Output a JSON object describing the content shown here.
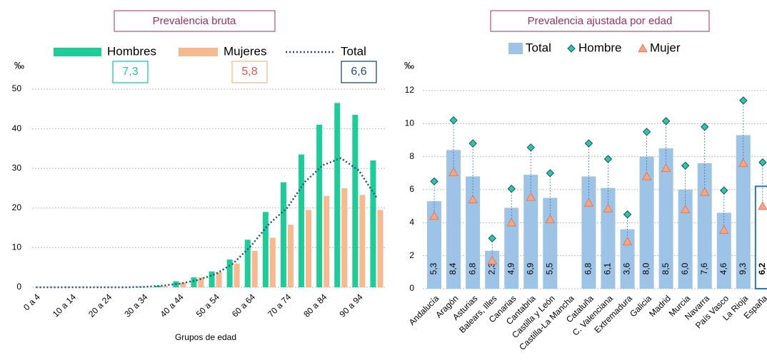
{
  "chart_data": [
    {
      "type": "bar",
      "title": "Prevalencia bruta",
      "ylabel": "‰",
      "xlabel": "Grupos de edad",
      "categories": [
        "0 a 4",
        null,
        "10 a 14",
        null,
        "20 a 24",
        null,
        "30 a 34",
        null,
        "40 a 44",
        null,
        "50 a 54",
        null,
        "60 a 64",
        null,
        "70 a 74",
        null,
        "80 a 84",
        null,
        "90 a 94",
        null
      ],
      "series": [
        {
          "name": "Hombres",
          "color": "#1ccd98",
          "summary": "7,3",
          "values": [
            0,
            0,
            0,
            0,
            0,
            0,
            0.1,
            0.4,
            1.5,
            2.5,
            4,
            7,
            12,
            19,
            26.5,
            33.5,
            41,
            46.5,
            43.5,
            32
          ]
        },
        {
          "name": "Mujeres",
          "color": "#f8b98e",
          "summary": "5,8",
          "values": [
            0,
            0,
            0,
            0,
            0,
            0,
            0.1,
            0.3,
            1.2,
            2.5,
            3.8,
            6,
            9.2,
            12.5,
            15.8,
            19.5,
            23,
            25,
            23.3,
            19.5
          ]
        },
        {
          "name": "Total",
          "type": "line",
          "color": "#1f4e79",
          "summary": "6,6",
          "values": [
            0,
            0,
            0,
            0,
            0,
            0,
            0.1,
            0.4,
            0.9,
            1.8,
            3.3,
            6,
            10.5,
            16,
            20,
            26.6,
            30.8,
            32.6,
            29.5,
            22.6
          ]
        }
      ],
      "ylim": [
        0,
        50
      ],
      "yticks": [
        0,
        10,
        20,
        30,
        40,
        50
      ],
      "grid": true
    },
    {
      "type": "bar",
      "title": "Prevalencia ajustada por edad",
      "ylabel": "‰",
      "categories": [
        "Andalucía",
        "Aragón",
        "Asturias",
        "Balears, Illes",
        "Canarias",
        "Cantabria",
        "Castilla y León",
        "Castilla-La Mancha",
        "Cataluña",
        "C. Valenciana",
        "Extremadura",
        "Galicia",
        "Madrid",
        "Murcia",
        "Navarra",
        "País Vasco",
        "La Rioja",
        "España"
      ],
      "series": [
        {
          "name": "Total",
          "color": "#9dc3e6",
          "values": [
            5.3,
            8.4,
            6.8,
            2.3,
            4.9,
            6.9,
            5.5,
            null,
            6.8,
            6.1,
            3.6,
            8.0,
            8.5,
            6.0,
            7.6,
            4.6,
            9.3,
            6.2
          ],
          "value_labels": [
            "5,3",
            "8,4",
            "6,8",
            "2,3",
            "4,9",
            "6,9",
            "5,5",
            null,
            "6,8",
            "6,1",
            "3,6",
            "8,0",
            "8,5",
            "6,0",
            "7,6",
            "4,6",
            "9,3",
            "6,2"
          ]
        },
        {
          "name": "Hombre",
          "type": "diamond",
          "color": "#2ec4b0",
          "values": [
            6.5,
            10.2,
            8.8,
            3.05,
            6.05,
            8.55,
            7.0,
            null,
            8.8,
            7.85,
            4.5,
            9.5,
            10.15,
            7.45,
            9.8,
            5.95,
            11.4,
            7.65
          ]
        },
        {
          "name": "Mujer",
          "type": "triangle",
          "color": "#f4a582",
          "values": [
            4.4,
            7.05,
            5.4,
            1.7,
            4.0,
            5.55,
            4.2,
            null,
            5.2,
            4.85,
            2.85,
            6.8,
            7.3,
            4.8,
            5.85,
            3.55,
            7.6,
            5.0
          ]
        }
      ],
      "ylim": [
        0,
        12
      ],
      "yticks": [
        0,
        2,
        4,
        6,
        8,
        10,
        12
      ],
      "grid": true
    }
  ]
}
